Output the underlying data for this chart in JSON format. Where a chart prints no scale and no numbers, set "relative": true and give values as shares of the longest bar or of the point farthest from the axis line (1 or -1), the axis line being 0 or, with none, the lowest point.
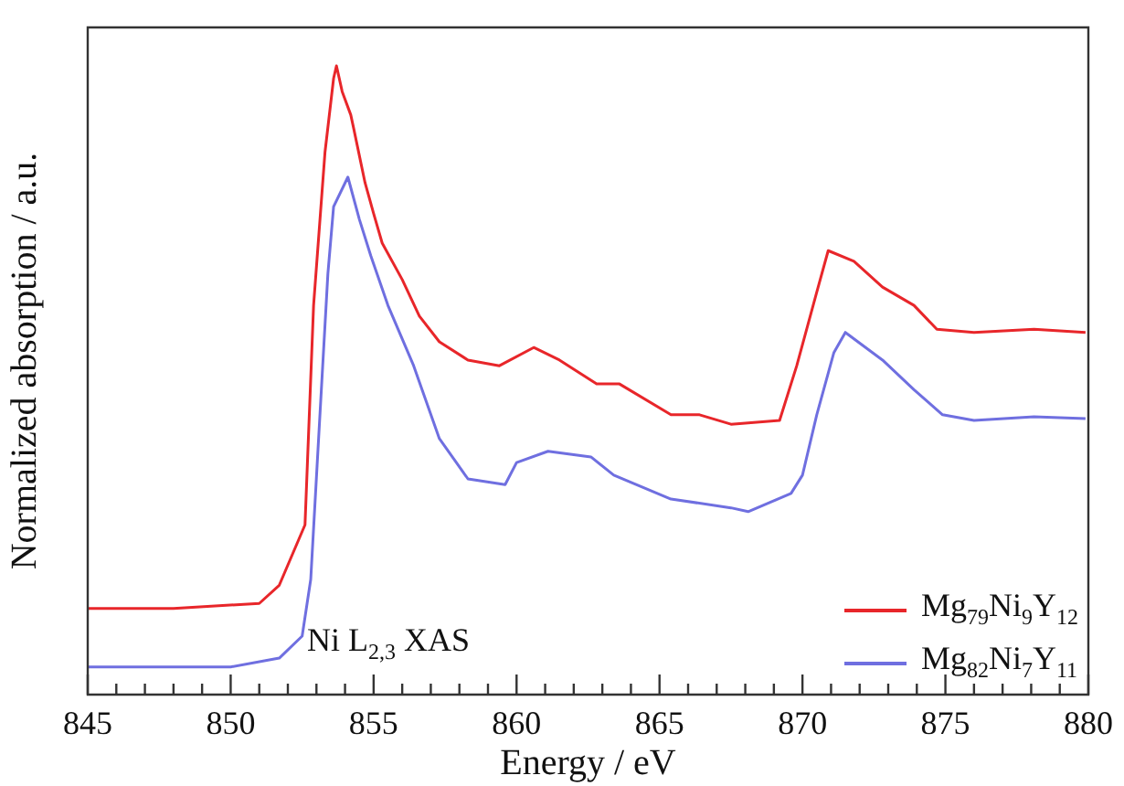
{
  "chart_data": {
    "type": "line",
    "relative": true,
    "xlabel": "Energy / eV",
    "ylabel": "Normalized absorption / a.u.",
    "annotations": [
      "Ni L$_{2,3}$ XAS"
    ],
    "xlim": [
      845,
      880
    ],
    "xticks": [
      845,
      {
        "value": 846,
        "label": null
      },
      {
        "value": 847,
        "label": null
      },
      {
        "value": 848,
        "label": null
      },
      {
        "value": 849,
        "label": null
      },
      850,
      {
        "value": 851,
        "label": null
      },
      {
        "value": 852,
        "label": null
      },
      {
        "value": 853,
        "label": null
      },
      {
        "value": 854,
        "label": null
      },
      855,
      {
        "value": 856,
        "label": null
      },
      {
        "value": 857,
        "label": null
      },
      {
        "value": 858,
        "label": null
      },
      {
        "value": 859,
        "label": null
      },
      860,
      {
        "value": 861,
        "label": null
      },
      {
        "value": 862,
        "label": null
      },
      {
        "value": 863,
        "label": null
      },
      {
        "value": 864,
        "label": null
      },
      865,
      {
        "value": 866,
        "label": null
      },
      {
        "value": 867,
        "label": null
      },
      {
        "value": 868,
        "label": null
      },
      {
        "value": 869,
        "label": null
      },
      870,
      {
        "value": 871,
        "label": null
      },
      {
        "value": 872,
        "label": null
      },
      {
        "value": 873,
        "label": null
      },
      {
        "value": 874,
        "label": null
      },
      875,
      {
        "value": 876,
        "label": null
      },
      {
        "value": 877,
        "label": null
      },
      {
        "value": 878,
        "label": null
      },
      {
        "value": 879,
        "label": null
      },
      880
    ],
    "tick_labels": "x",
    "legend": "bottom right",
    "marker": "none",
    "line_style": "solid",
    "series": [
      {
        "name": "Mg$_{79}$Ni$_{9}$Y$_{12}$",
        "color": "#e8262a",
        "x": [
          845,
          848,
          851,
          851.7,
          852.6,
          852.9,
          853.3,
          853.6,
          853.7,
          853.9,
          854.2,
          854.3,
          854.7,
          855.0,
          855.3,
          856.0,
          856.6,
          857.3,
          858.3,
          859.4,
          860.6,
          861.5,
          862.8,
          863.6,
          865.4,
          866.4,
          867.5,
          869.2,
          869.8,
          870.5,
          870.9,
          871.8,
          872.8,
          873.9,
          874.7,
          876.0,
          878.1,
          879.9
        ],
        "values": [
          0.137,
          0.137,
          0.145,
          0.174,
          0.27,
          0.619,
          0.863,
          0.98,
          1,
          0.959,
          0.922,
          0.901,
          0.814,
          0.765,
          0.718,
          0.66,
          0.602,
          0.561,
          0.532,
          0.523,
          0.552,
          0.532,
          0.494,
          0.494,
          0.445,
          0.445,
          0.43,
          0.436,
          0.523,
          0.64,
          0.706,
          0.689,
          0.648,
          0.619,
          0.581,
          0.576,
          0.581,
          0.576
        ]
      },
      {
        "name": "Mg$_{82}$Ni$_{7}$Y$_{11}$",
        "color": "#6f6fe0",
        "x": [
          845,
          850,
          851.7,
          852.5,
          852.8,
          853.1,
          853.4,
          853.6,
          854.1,
          854.5,
          854.9,
          855.5,
          856.4,
          857.3,
          858.3,
          859.6,
          860.0,
          861.1,
          862.6,
          863.4,
          865.4,
          867.5,
          868.1,
          869.6,
          870.0,
          870.5,
          871.1,
          871.5,
          872.8,
          873.9,
          874.9,
          876.0,
          878.1,
          879.9
        ],
        "values": [
          0.044,
          0.044,
          0.058,
          0.093,
          0.183,
          0.427,
          0.669,
          0.776,
          0.823,
          0.756,
          0.698,
          0.619,
          0.523,
          0.407,
          0.343,
          0.334,
          0.369,
          0.387,
          0.378,
          0.349,
          0.311,
          0.297,
          0.291,
          0.32,
          0.349,
          0.445,
          0.544,
          0.576,
          0.532,
          0.485,
          0.445,
          0.436,
          0.442,
          0.439
        ]
      }
    ]
  }
}
